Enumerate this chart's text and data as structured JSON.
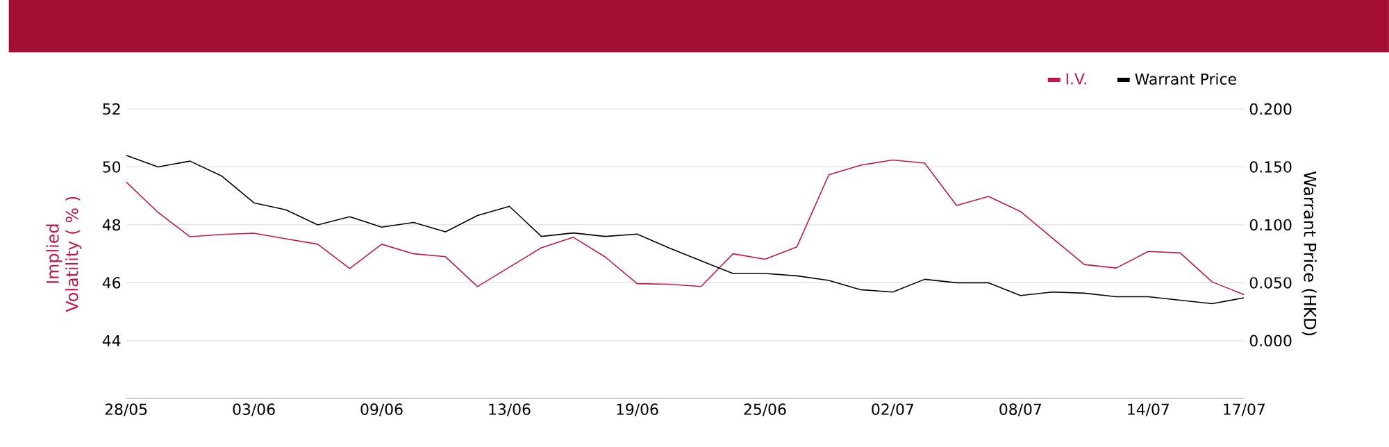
{
  "chart_data": {
    "type": "line",
    "ylabel": "Implied Volatility ( % )",
    "y2label": "Warrant Price (HKD)",
    "categories": [
      "28/05",
      null,
      null,
      null,
      "03/06",
      null,
      null,
      null,
      "09/06",
      null,
      null,
      null,
      "13/06",
      null,
      null,
      null,
      "19/06",
      null,
      null,
      null,
      "25/06",
      null,
      null,
      null,
      "02/07",
      null,
      null,
      null,
      "08/07",
      null,
      null,
      null,
      "14/07",
      null,
      null,
      "17/07"
    ],
    "series": [
      {
        "name": "I.V.",
        "color": "#c4164c",
        "values": [
          49.48,
          48.43,
          47.59,
          47.67,
          47.71,
          47.52,
          47.33,
          46.49,
          47.33,
          47.0,
          46.9,
          45.87,
          46.54,
          47.21,
          47.57,
          46.89,
          45.97,
          45.95,
          45.87,
          47.0,
          46.81,
          47.24,
          49.73,
          50.06,
          50.24,
          50.13,
          48.67,
          48.98,
          48.46,
          47.54,
          46.63,
          46.51,
          47.08,
          47.03,
          46.03,
          45.59
        ]
      },
      {
        "name": "Warrant Price",
        "color": "#000000",
        "axis": "y2",
        "values": [
          0.16,
          0.15,
          0.155,
          0.142,
          0.119,
          0.113,
          0.1,
          0.107,
          0.098,
          0.102,
          0.094,
          0.108,
          0.116,
          0.09,
          0.093,
          0.09,
          0.092,
          0.08,
          0.069,
          0.058,
          0.058,
          0.056,
          0.052,
          0.044,
          0.042,
          0.053,
          0.05,
          0.05,
          0.039,
          0.042,
          0.041,
          0.038,
          0.038,
          0.035,
          0.032,
          0.037
        ]
      }
    ],
    "ylim": [
      42,
      52
    ],
    "yticks": [
      44,
      46,
      48,
      50,
      52
    ],
    "y2lim": [
      -0.05,
      0.2
    ],
    "y2ticks": [
      {
        "value": 0,
        "label": "0.000"
      },
      {
        "value": 0.05,
        "label": "0.050"
      },
      {
        "value": 0.1,
        "label": "0.100"
      },
      {
        "value": 0.15,
        "label": "0.150"
      },
      {
        "value": 0.2,
        "label": "0.200"
      }
    ],
    "grid": "y",
    "legend": "top right",
    "marker": "none",
    "line_style": "solid"
  }
}
